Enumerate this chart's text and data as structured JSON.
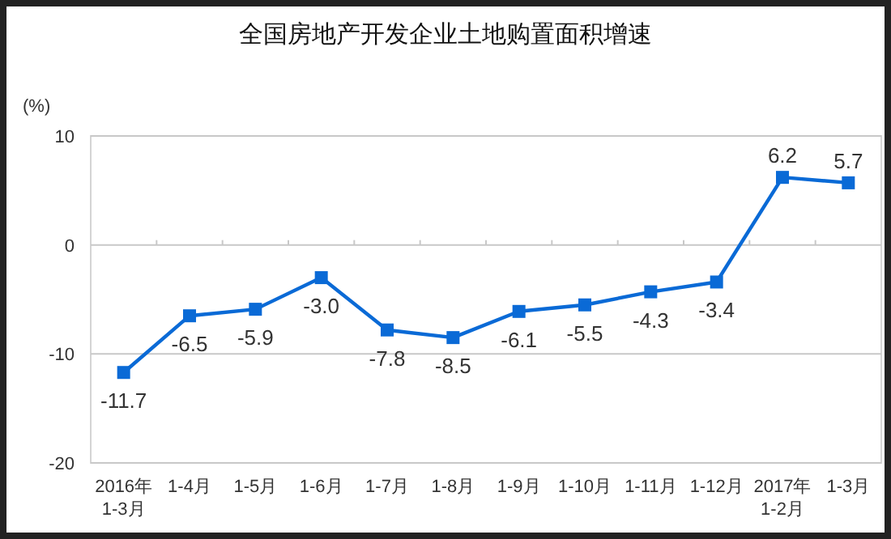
{
  "chart_data": {
    "type": "line",
    "title": "全国房地产开发企业土地购置面积增速",
    "ylabel": "(%)",
    "categories": [
      "2016年\n1-3月",
      "1-4月",
      "1-5月",
      "1-6月",
      "1-7月",
      "1-8月",
      "1-9月",
      "1-10月",
      "1-11月",
      "1-12月",
      "2017年\n1-2月",
      "1-3月"
    ],
    "series": [
      {
        "color": "#0a6ad6",
        "values": [
          -11.7,
          -6.5,
          -5.9,
          -3.0,
          -7.8,
          -8.5,
          -6.1,
          -5.5,
          -4.3,
          -3.4,
          6.2,
          5.7
        ],
        "value_labels": [
          "-11.7",
          "-6.5",
          "-5.9",
          "-3.0",
          "-7.8",
          "-8.5",
          "-6.1",
          "-5.5",
          "-4.3",
          "-3.4",
          "6.2",
          "5.7"
        ]
      }
    ],
    "ylim": [
      -20,
      10
    ],
    "yticks": [
      -20,
      -10,
      0,
      10
    ],
    "marker": "square",
    "line_style": "solid",
    "grid": "y"
  }
}
